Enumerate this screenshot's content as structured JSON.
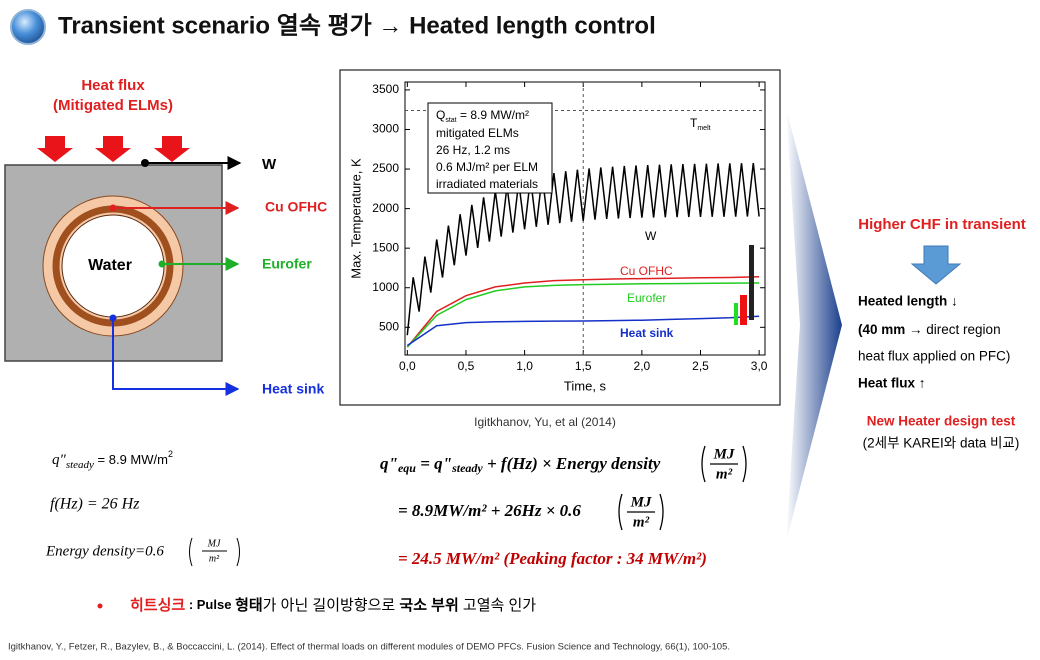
{
  "header": {
    "title": "Transient scenario 열속 평가 → Heated length control"
  },
  "diagram": {
    "heat_flux_label": [
      "Heat flux",
      "(Mitigated ELMs)"
    ],
    "center": "Water",
    "outputs": [
      "W",
      "Cu OFHC",
      "Eurofer",
      "Heat sink"
    ]
  },
  "figure": {
    "chart_data": {
      "type": "line",
      "x_label": "Time, s",
      "y_label": "Max. Temperature, K",
      "legend_box": [
        "mitigated ELMs",
        "26 Hz, 1.2 ms",
        "0.6 MJ/m² per ELM",
        "irradiated materials"
      ],
      "legend_first": {
        "q": "Q",
        "sub": "stat",
        "rest": " = 8.9 MW/m²"
      },
      "melt_label": {
        "t": "T",
        "sub": "melt"
      },
      "melt_line": 3240,
      "marker_x": 1.5,
      "xlim": [
        -0.02,
        3.05
      ],
      "ylim": [
        150,
        3600
      ],
      "xticks": [
        {
          "value": 0,
          "label": "0,0"
        },
        {
          "value": 0.5,
          "label": "0,5"
        },
        {
          "value": 1,
          "label": "1,0"
        },
        {
          "value": 1.5,
          "label": "1,5"
        },
        {
          "value": 2,
          "label": "2,0"
        },
        {
          "value": 2.5,
          "label": "2,5"
        },
        {
          "value": 3,
          "label": "3,0"
        }
      ],
      "yticks": [
        500,
        1000,
        1500,
        2000,
        2500,
        3000,
        3500
      ],
      "series": [
        {
          "name": "W",
          "color": "#000000",
          "x": [
            0,
            0.05,
            0.1,
            0.15,
            0.2,
            0.25,
            0.3,
            0.35,
            0.4,
            0.45,
            0.5,
            0.55,
            0.6,
            0.65,
            0.7,
            0.75,
            0.8,
            0.85,
            0.9,
            0.95,
            1,
            1.05,
            1.1,
            1.15,
            1.2,
            1.25,
            1.3,
            1.35,
            1.4,
            1.45,
            1.5,
            1.55,
            1.6,
            1.65,
            1.7,
            1.75,
            1.8,
            1.85,
            1.9,
            1.95,
            2,
            2.05,
            2.1,
            2.15,
            2.2,
            2.25,
            2.3,
            2.35,
            2.4,
            2.45,
            2.5,
            2.55,
            2.6,
            2.65,
            2.7,
            2.75,
            2.8,
            2.85,
            2.9,
            2.95,
            3
          ],
          "values": [
            400,
            1132,
            699,
            1394,
            939,
            1609,
            1130,
            1785,
            1283,
            1929,
            1406,
            2047,
            1504,
            2143,
            1583,
            2223,
            1646,
            2287,
            1697,
            2340,
            1738,
            2385,
            1770,
            2420,
            1796,
            2449,
            1817,
            2473,
            1833,
            2492,
            1846,
            2508,
            1860,
            2520,
            1870,
            2530,
            1875,
            2538,
            1880,
            2545,
            1885,
            2550,
            1888,
            2555,
            1890,
            2560,
            1892,
            2563,
            1894,
            2566,
            1895,
            2568,
            1896,
            2570,
            1897,
            2572,
            1898,
            2574,
            1899,
            2575,
            1900
          ]
        },
        {
          "name": "Cu OFHC",
          "color": "#e02020",
          "x": [
            0,
            0.25,
            0.5,
            0.75,
            1,
            1.25,
            1.5,
            1.75,
            2,
            2.25,
            2.5,
            2.75,
            3
          ],
          "values": [
            250,
            700,
            900,
            1010,
            1060,
            1090,
            1100,
            1110,
            1115,
            1120,
            1125,
            1130,
            1140
          ]
        },
        {
          "name": "Eurofer",
          "color": "#22cc22",
          "x": [
            0,
            0.25,
            0.5,
            0.75,
            1,
            1.25,
            1.5,
            1.75,
            2,
            2.25,
            2.5,
            2.75,
            3
          ],
          "values": [
            250,
            650,
            850,
            960,
            1010,
            1030,
            1040,
            1045,
            1050,
            1052,
            1055,
            1058,
            1060
          ]
        },
        {
          "name": "Heat sink",
          "color": "#1530c8",
          "x": [
            0,
            0.25,
            0.5,
            0.75,
            1,
            1.25,
            1.5,
            1.75,
            2,
            2.25,
            2.5,
            2.75,
            3
          ],
          "values": [
            270,
            520,
            560,
            570,
            575,
            578,
            580,
            585,
            590,
            600,
            610,
            620,
            640
          ]
        }
      ]
    },
    "caption": "Igitkhanov, Yu, et al (2014)"
  },
  "equations": {
    "left": [
      {
        "q": "q\"",
        "sub": "steady",
        "rest": " = 8.9 MW/m",
        "sup": "2"
      },
      {
        "text": "f(Hz) = 26 Hz"
      },
      {
        "lhs": "Energy density=0.6",
        "num": "MJ",
        "den": "m²"
      }
    ],
    "right": [
      {
        "q": "q\"",
        "sub": "equ",
        "mid": " = q\"",
        "sub2": "steady",
        "rest": " + f(Hz) × Energy density",
        "num": "MJ",
        "den": "m²"
      },
      {
        "text": "= 8.9MW/m² + 26Hz × 0.6",
        "num": "MJ",
        "den": "m²"
      },
      {
        "text": "= 24.5 MW/m² (Peaking factor :  34 MW/m²)"
      }
    ]
  },
  "side": {
    "headline": "Higher CHF in transient",
    "lines": [
      "Heated length ↓",
      "(",
      "40 mm",
      " → direct region",
      "heat flux applied on PFC)",
      "Heat flux ↑"
    ],
    "test": "New Heater design test",
    "compare": "(2세부 KAREI와 data 비교)"
  },
  "bullet": [
    "히트싱크",
    " : Pulse ",
    "형태",
    "가 아닌 길이방향으로 ",
    "국소 부위",
    " 고열속 인가"
  ],
  "reference": "Igitkhanov, Y., Fetzer, R., Bazylev, B., & Boccaccini, L. (2014). Effect of thermal loads on different modules of DEMO PFCs. Fusion Science and Technology, 66(1), 100-105."
}
